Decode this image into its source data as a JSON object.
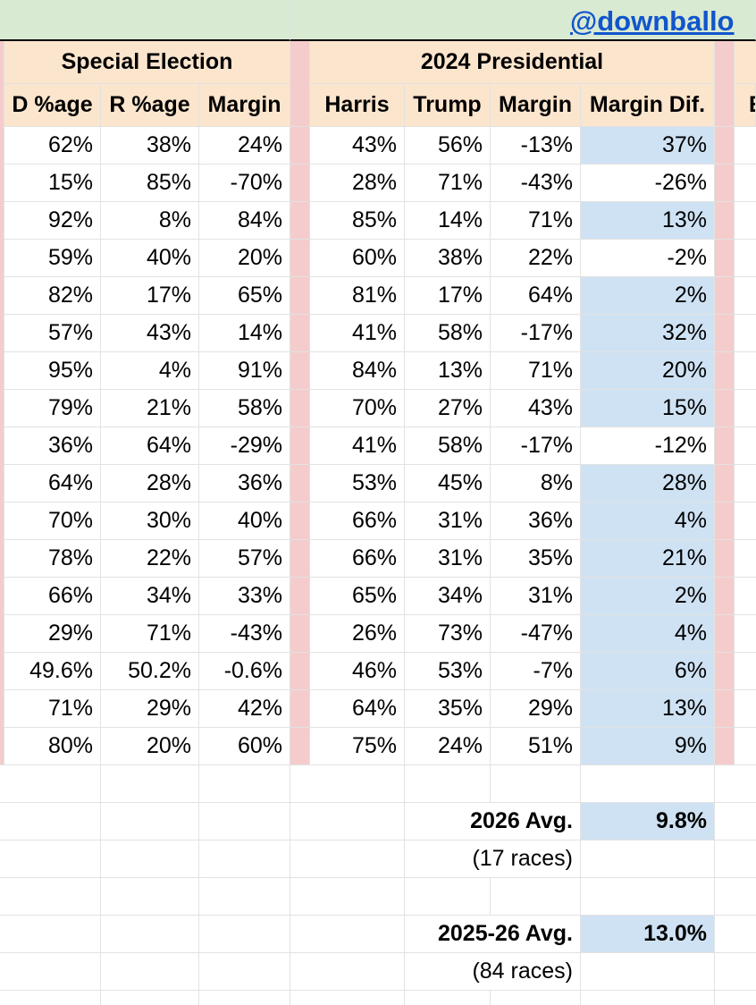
{
  "header": {
    "link": "@downballo",
    "group1": "Special Election",
    "group2": "2024 Presidential",
    "columns": [
      "D %age",
      "R %age",
      "Margin",
      "Harris",
      "Trump",
      "Margin",
      "Margin Dif.",
      "E"
    ]
  },
  "table": {
    "rows": [
      [
        "62%",
        "38%",
        "24%",
        "43%",
        "56%",
        "-13%",
        "37%"
      ],
      [
        "15%",
        "85%",
        "-70%",
        "28%",
        "71%",
        "-43%",
        "-26%"
      ],
      [
        "92%",
        "8%",
        "84%",
        "85%",
        "14%",
        "71%",
        "13%"
      ],
      [
        "59%",
        "40%",
        "20%",
        "60%",
        "38%",
        "22%",
        "-2%"
      ],
      [
        "82%",
        "17%",
        "65%",
        "81%",
        "17%",
        "64%",
        "2%"
      ],
      [
        "57%",
        "43%",
        "14%",
        "41%",
        "58%",
        "-17%",
        "32%"
      ],
      [
        "95%",
        "4%",
        "91%",
        "84%",
        "13%",
        "71%",
        "20%"
      ],
      [
        "79%",
        "21%",
        "58%",
        "70%",
        "27%",
        "43%",
        "15%"
      ],
      [
        "36%",
        "64%",
        "-29%",
        "41%",
        "58%",
        "-17%",
        "-12%"
      ],
      [
        "64%",
        "28%",
        "36%",
        "53%",
        "45%",
        "8%",
        "28%"
      ],
      [
        "70%",
        "30%",
        "40%",
        "66%",
        "31%",
        "36%",
        "4%"
      ],
      [
        "78%",
        "22%",
        "57%",
        "66%",
        "31%",
        "35%",
        "21%"
      ],
      [
        "66%",
        "34%",
        "33%",
        "65%",
        "34%",
        "31%",
        "2%"
      ],
      [
        "29%",
        "71%",
        "-43%",
        "26%",
        "73%",
        "-47%",
        "4%"
      ],
      [
        "49.6%",
        "50.2%",
        "-0.6%",
        "46%",
        "53%",
        "-7%",
        "6%"
      ],
      [
        "71%",
        "29%",
        "42%",
        "64%",
        "35%",
        "29%",
        "13%"
      ],
      [
        "80%",
        "20%",
        "60%",
        "75%",
        "24%",
        "51%",
        "9%"
      ]
    ]
  },
  "summary": [
    {
      "label": "2026 Avg.",
      "value": "9.8%",
      "note": "(17 races)"
    },
    {
      "label": "2025-26 Avg.",
      "value": "13.0%",
      "note": "(84 races)"
    }
  ]
}
